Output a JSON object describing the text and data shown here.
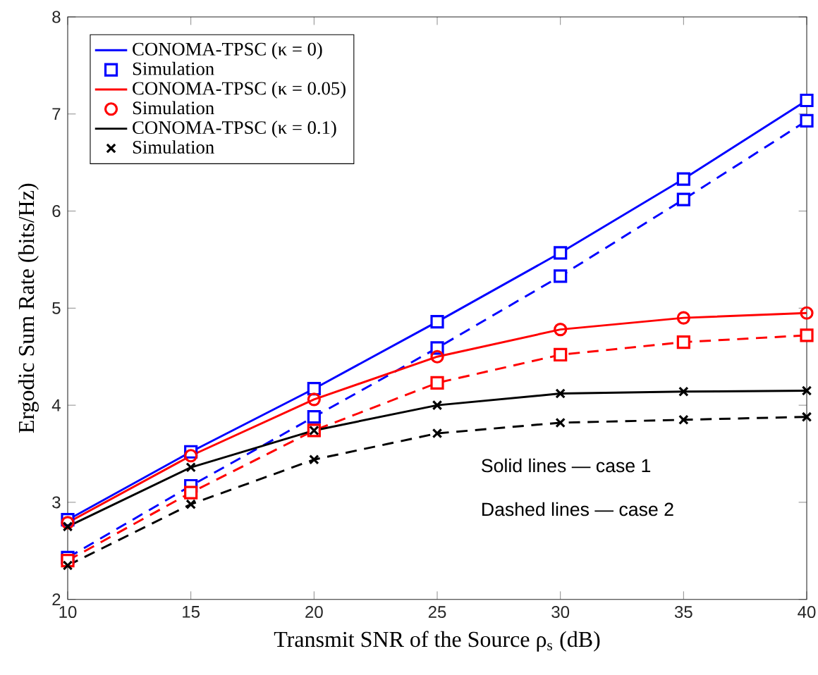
{
  "chart_data": {
    "type": "line",
    "xlabel": "Transmit SNR of the Source ρ$_{s}$ (dB)",
    "ylabel": "Ergodic Sum Rate (bits/Hz)",
    "xlim": [
      10,
      40
    ],
    "ylim": [
      2,
      8
    ],
    "xticks": [
      10,
      15,
      20,
      25,
      30,
      35,
      40
    ],
    "yticks": [
      2,
      3,
      4,
      5,
      6,
      7,
      8
    ],
    "legend": "top left",
    "annotations": [
      "Solid lines — case 1",
      "Dashed lines — case 2"
    ],
    "x": [
      10,
      15,
      20,
      25,
      30,
      35,
      40
    ],
    "series": [
      {
        "line_style": "dashed",
        "marker": "none",
        "color": "#0000ff",
        "values": [
          2.43,
          3.17,
          3.88,
          4.59,
          5.33,
          6.12,
          6.93
        ]
      },
      {
        "line_style": "dashed",
        "marker": "none",
        "color": "#ff0000",
        "values": [
          2.4,
          3.1,
          3.74,
          4.23,
          4.52,
          4.65,
          4.72
        ]
      },
      {
        "line_style": "dashed",
        "marker": "none",
        "color": "#000000",
        "values": [
          2.35,
          2.98,
          3.44,
          3.71,
          3.82,
          3.85,
          3.88
        ]
      },
      {
        "name": "CONOMA-TPSC (κ = 0)",
        "line_style": "solid",
        "marker": "none",
        "color": "#0000ff",
        "values": [
          2.82,
          3.52,
          4.17,
          4.86,
          5.57,
          6.33,
          7.14
        ]
      },
      {
        "type": "scatter",
        "name": "Simulation",
        "marker": "square",
        "color": "#0000ff",
        "x": [
          10,
          15,
          20,
          25,
          30,
          35,
          40,
          10,
          15,
          20,
          25,
          30,
          35,
          40
        ],
        "values": [
          2.82,
          3.52,
          4.17,
          4.86,
          5.57,
          6.33,
          7.14,
          2.43,
          3.17,
          3.88,
          4.59,
          5.33,
          6.12,
          6.93
        ]
      },
      {
        "name": "CONOMA-TPSC (κ = 0.05)",
        "line_style": "solid",
        "marker": "none",
        "color": "#ff0000",
        "values": [
          2.79,
          3.48,
          4.06,
          4.5,
          4.78,
          4.9,
          4.95
        ]
      },
      {
        "type": "scatter",
        "name": "Simulation",
        "marker": "circle",
        "color": "#ff0000",
        "x": [
          10,
          15,
          20,
          25,
          30,
          35,
          40
        ],
        "values": [
          2.79,
          3.48,
          4.06,
          4.5,
          4.78,
          4.9,
          4.95
        ]
      },
      {
        "type": "scatter",
        "marker": "square",
        "color": "#ff0000",
        "x": [
          10,
          15,
          20,
          25,
          30,
          35,
          40
        ],
        "values": [
          2.4,
          3.1,
          3.74,
          4.23,
          4.52,
          4.65,
          4.72
        ]
      },
      {
        "name": "CONOMA-TPSC (κ = 0.1)",
        "line_style": "solid",
        "marker": "none",
        "color": "#000000",
        "values": [
          2.75,
          3.36,
          3.74,
          4.0,
          4.12,
          4.14,
          4.15
        ]
      },
      {
        "type": "scatter",
        "name": "Simulation",
        "marker": "cross",
        "color": "#000000",
        "x": [
          10,
          15,
          20,
          25,
          30,
          35,
          40,
          10,
          15,
          20,
          25,
          30,
          35,
          40
        ],
        "values": [
          2.75,
          3.36,
          3.74,
          4.0,
          4.12,
          4.14,
          4.15,
          2.35,
          2.98,
          3.44,
          3.71,
          3.82,
          3.85,
          3.88
        ]
      }
    ]
  }
}
